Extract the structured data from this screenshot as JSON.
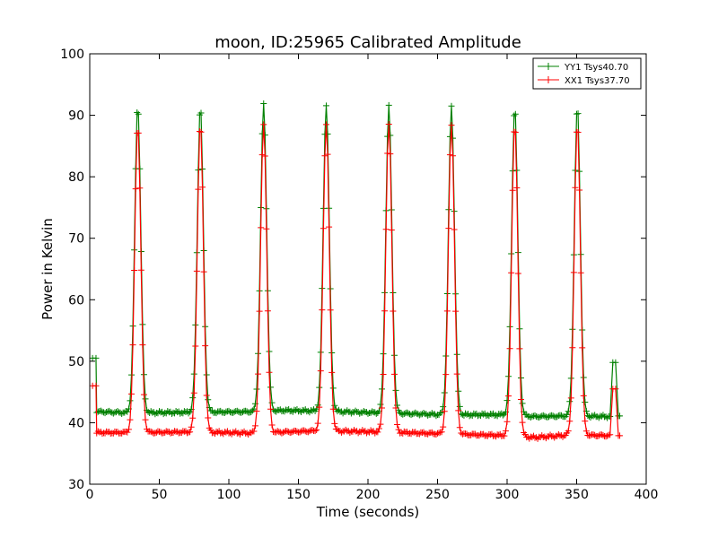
{
  "chart_data": {
    "type": "line",
    "title": "moon, ID:25965 Calibrated Amplitude",
    "xlabel": "Time (seconds)",
    "ylabel": "Power in Kelvin",
    "xlim": [
      0,
      400
    ],
    "ylim": [
      30,
      100
    ],
    "xticks": [
      "0",
      "50",
      "100",
      "150",
      "200",
      "250",
      "300",
      "350",
      "400"
    ],
    "yticks": [
      "30",
      "40",
      "50",
      "60",
      "70",
      "80",
      "90",
      "100"
    ],
    "grid": false,
    "legend_position": "top-right",
    "peak_times": [
      34.5,
      79.5,
      125,
      170,
      215,
      260,
      305.5,
      350.5
    ],
    "series": [
      {
        "name": "YY1 Tsys40.70",
        "color": "#008000",
        "start": [
          [
            2,
            50.5
          ],
          [
            4.5,
            50.5
          ]
        ],
        "end": [
          [
            376,
            49.8
          ],
          [
            378,
            49.8
          ]
        ],
        "tail": [
          [
            380,
            41.1
          ],
          [
            381,
            41.1
          ]
        ],
        "baseline": [
          [
            5,
            41.8
          ],
          [
            30,
            41.6
          ],
          [
            75,
            41.7
          ],
          [
            120,
            41.8
          ],
          [
            140,
            42.0
          ],
          [
            165,
            41.9
          ],
          [
            210,
            41.6
          ],
          [
            255,
            41.3
          ],
          [
            300,
            41.3
          ],
          [
            320,
            41.0
          ],
          [
            345,
            41.1
          ],
          [
            374,
            41.0
          ]
        ],
        "peaks": [
          91.7,
          91.5,
          91.8,
          91.8,
          91.5,
          91.4,
          91.4,
          91.4
        ]
      },
      {
        "name": "XX1 Tsys37.70",
        "color": "#ff0000",
        "start": [
          [
            2,
            46.0
          ],
          [
            4.5,
            46.0
          ]
        ],
        "end": [
          [
            376,
            45.5
          ],
          [
            378,
            45.5
          ]
        ],
        "tail": [
          [
            380,
            37.9
          ],
          [
            381,
            37.9
          ]
        ],
        "baseline": [
          [
            5,
            38.4
          ],
          [
            30,
            38.4
          ],
          [
            75,
            38.5
          ],
          [
            120,
            38.3
          ],
          [
            140,
            38.5
          ],
          [
            165,
            38.7
          ],
          [
            210,
            38.5
          ],
          [
            255,
            38.2
          ],
          [
            300,
            37.9
          ],
          [
            320,
            37.6
          ],
          [
            345,
            38.0
          ],
          [
            374,
            37.9
          ]
        ],
        "peaks": [
          88.5,
          88.5,
          88.5,
          88.5,
          88.5,
          88.5,
          88.5,
          88.5
        ]
      }
    ]
  }
}
